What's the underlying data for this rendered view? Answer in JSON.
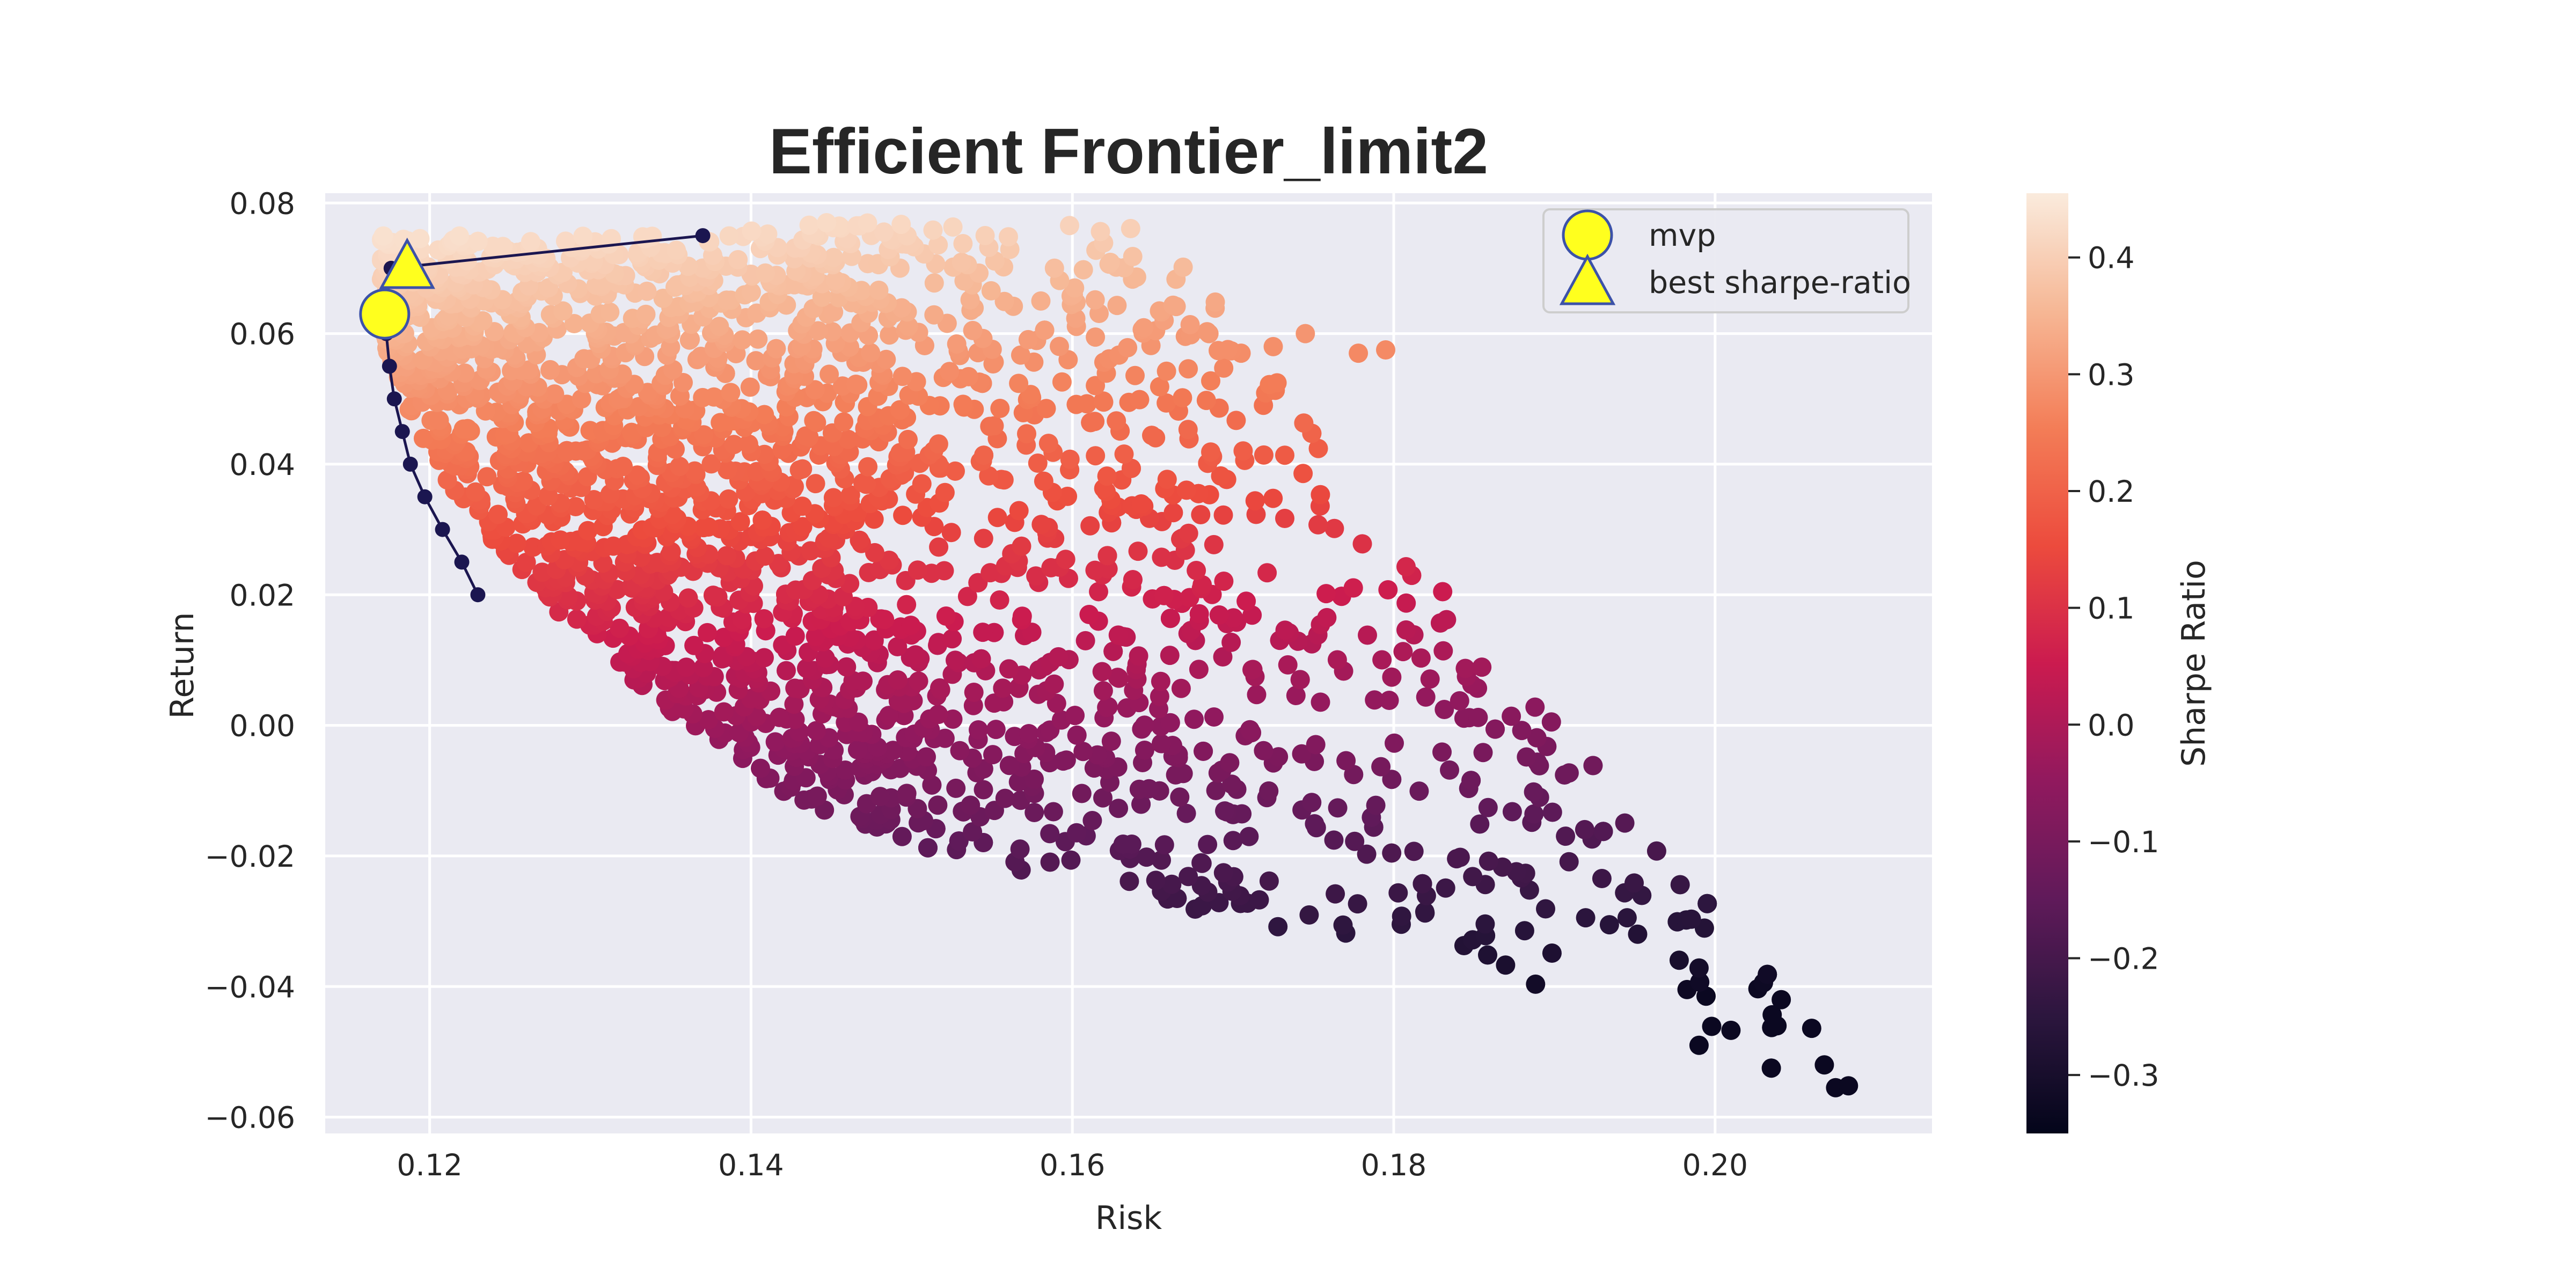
{
  "chart_data": {
    "type": "scatter",
    "title": "Efficient Frontier_limit2",
    "xlabel": "Risk",
    "ylabel": "Return",
    "xlim": [
      0.1135,
      0.2135
    ],
    "ylim": [
      -0.0625,
      0.0815
    ],
    "x_ticks": [
      0.12,
      0.14,
      0.16,
      0.18,
      0.2
    ],
    "x_tick_labels": [
      "0.12",
      "0.14",
      "0.16",
      "0.18",
      "0.20"
    ],
    "y_ticks": [
      0.08,
      0.06,
      0.04,
      0.02,
      0.0,
      -0.02,
      -0.04,
      -0.06
    ],
    "y_tick_labels": [
      "0.08",
      "0.06",
      "0.04",
      "0.02",
      "0.00",
      "−0.02",
      "−0.04",
      "−0.06"
    ],
    "grid": true,
    "colorbar": {
      "label": "Sharpe Ratio",
      "range": [
        -0.35,
        0.455
      ],
      "ticks": [
        0.4,
        0.3,
        0.2,
        0.1,
        0.0,
        -0.1,
        -0.2,
        -0.3
      ],
      "tick_labels": [
        "0.4",
        "0.3",
        "0.2",
        "0.1",
        "0.0",
        "−0.1",
        "−0.2",
        "−0.3"
      ]
    },
    "scatter_summary": {
      "count_approx": 10000,
      "risk_range": [
        0.117,
        0.208
      ],
      "return_range": [
        -0.056,
        0.077
      ],
      "sharpe_range": [
        -0.33,
        0.45
      ]
    },
    "frontier_points": [
      {
        "x": 0.123,
        "y": 0.02
      },
      {
        "x": 0.122,
        "y": 0.025
      },
      {
        "x": 0.1208,
        "y": 0.03
      },
      {
        "x": 0.1197,
        "y": 0.035
      },
      {
        "x": 0.1188,
        "y": 0.04
      },
      {
        "x": 0.1183,
        "y": 0.045
      },
      {
        "x": 0.1178,
        "y": 0.05
      },
      {
        "x": 0.1175,
        "y": 0.055
      },
      {
        "x": 0.1173,
        "y": 0.06
      },
      {
        "x": 0.1173,
        "y": 0.065
      },
      {
        "x": 0.1176,
        "y": 0.07
      },
      {
        "x": 0.137,
        "y": 0.075
      }
    ],
    "mvp": {
      "x": 0.1172,
      "y": 0.063
    },
    "best_sharpe": {
      "x": 0.1186,
      "y": 0.07
    },
    "legend": {
      "placement": "upper right",
      "entries": [
        {
          "label": "mvp",
          "marker": "circle"
        },
        {
          "label": "best sharpe-ratio",
          "marker": "triangle"
        }
      ]
    },
    "colors": {
      "plot_bg": "#eaeaf2",
      "grid": "#ffffff",
      "frontier": "#1b1650",
      "marker_fill": "#ffff1e",
      "marker_edge": "#3c52a8"
    }
  }
}
